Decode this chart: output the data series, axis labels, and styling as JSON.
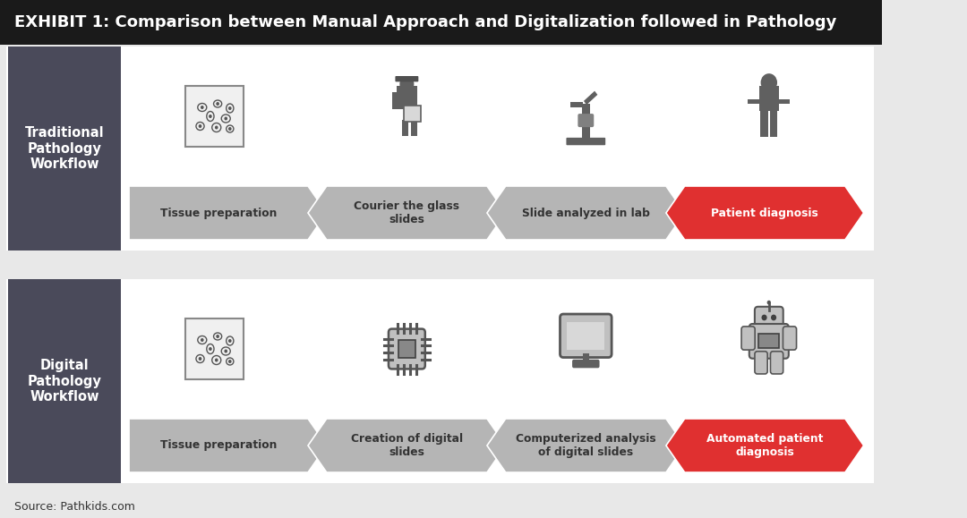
{
  "title": "EXHIBIT 1: Comparison between Manual Approach and Digitalization followed in Pathology",
  "title_bg": "#1a1a1a",
  "title_color": "#ffffff",
  "title_fontsize": 13,
  "bg_color": "#e8e8e8",
  "row1_label": "Traditional\nPathology\nWorkflow",
  "row2_label": "Digital\nPathology\nWorkflow",
  "label_bg": "#4a4a5a",
  "label_color": "#ffffff",
  "row1_steps": [
    "Tissue preparation",
    "Courier the glass\nslides",
    "Slide analyzed in lab",
    "Patient diagnosis"
  ],
  "row2_steps": [
    "Tissue preparation",
    "Creation of digital\nslides",
    "Computerized analysis\nof digital slides",
    "Automated patient\ndiagnosis"
  ],
  "arrow_color_normal": "#b5b5b5",
  "arrow_color_red": "#e03030",
  "arrow_text_normal": "#333333",
  "arrow_text_red": "#ffffff",
  "source_text": "Source: Pathkids.com",
  "source_fontsize": 9
}
